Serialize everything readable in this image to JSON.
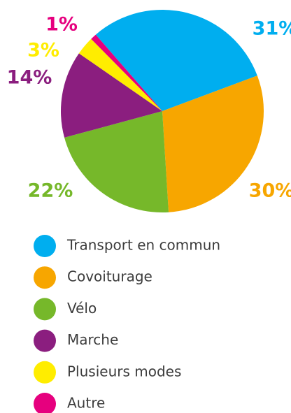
{
  "chart_data": {
    "type": "pie",
    "categories": [
      "Transport en commun",
      "Covoiturage",
      "Vélo",
      "Marche",
      "Plusieurs modes",
      "Autre"
    ],
    "values": [
      31,
      30,
      22,
      14,
      3,
      1
    ],
    "value_labels": [
      "31%",
      "30%",
      "22%",
      "14%",
      "3%",
      "1%"
    ],
    "colors": [
      "#00aeef",
      "#f7a600",
      "#76b82a",
      "#8b1e7f",
      "#ffed00",
      "#e6007e"
    ]
  }
}
